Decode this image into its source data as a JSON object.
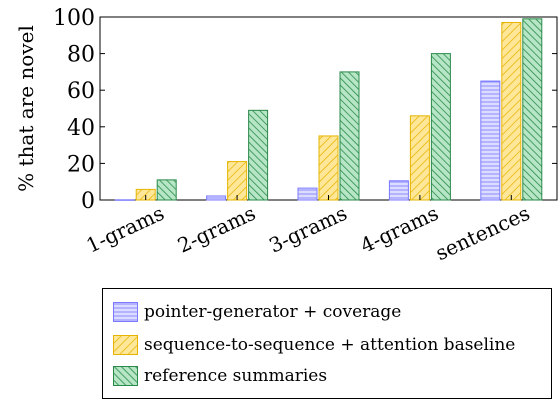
{
  "chart_data": {
    "type": "bar",
    "categories": [
      "1-grams",
      "2-grams",
      "3-grams",
      "4-grams",
      "sentences"
    ],
    "ylabel": "% that are novel",
    "ylim": [
      0,
      100
    ],
    "yticks": [
      0,
      20,
      40,
      60,
      80,
      100
    ],
    "grid": false,
    "legend_position": "bottom",
    "series": [
      {
        "name": "pointer-generator + coverage",
        "values": [
          0.1,
          2.2,
          6.5,
          10.5,
          65
        ],
        "color": "#7b7bff",
        "fill": "#dcdcff",
        "pattern": "horizontal-lines"
      },
      {
        "name": "sequence-to-sequence + attention baseline",
        "values": [
          5.8,
          21,
          35,
          46,
          97
        ],
        "color": "#e6b400",
        "fill": "#ffe79a",
        "pattern": "diagonal-lines"
      },
      {
        "name": "reference summaries",
        "values": [
          11,
          49,
          70,
          80,
          99
        ],
        "color": "#2b8a4a",
        "fill": "#b6e6c6",
        "pattern": "crosshatch"
      }
    ]
  }
}
